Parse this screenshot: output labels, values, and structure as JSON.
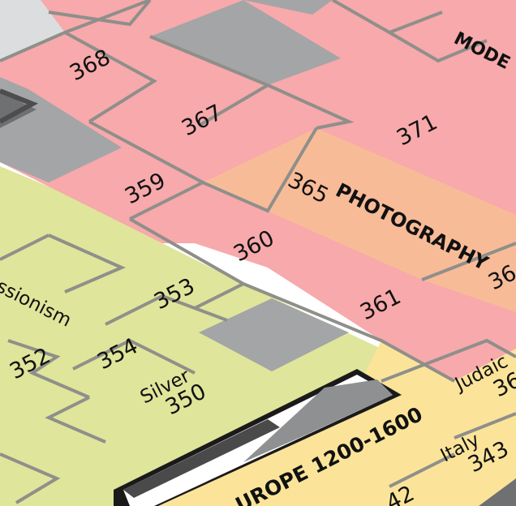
{
  "colors": {
    "pink": "#f7a9ab",
    "orange": "#f8bb98",
    "green": "#dfe59a",
    "yellow": "#fbe49a",
    "gray": "#a4a5a7",
    "dark_gray": "#6f7072",
    "light_gray": "#dcddde",
    "wall": "#8f8f8a"
  },
  "rooms": {
    "r368": "368",
    "r367": "367",
    "r371": "371",
    "r359": "359",
    "r365": "365",
    "r360": "360",
    "r361": "361",
    "r353": "353",
    "r354": "354",
    "r352": "352",
    "r350": "350",
    "r343": "343",
    "r342": "42",
    "r36a": "36",
    "r36b": "36"
  },
  "labels": {
    "photography": "PHOTOGRAPHY",
    "modern": "MODE",
    "impressionism": "ssionism",
    "silver": "Silver",
    "italy": "Italy",
    "judaica": "Judaic",
    "europe": "UROPE 1200-1600"
  }
}
